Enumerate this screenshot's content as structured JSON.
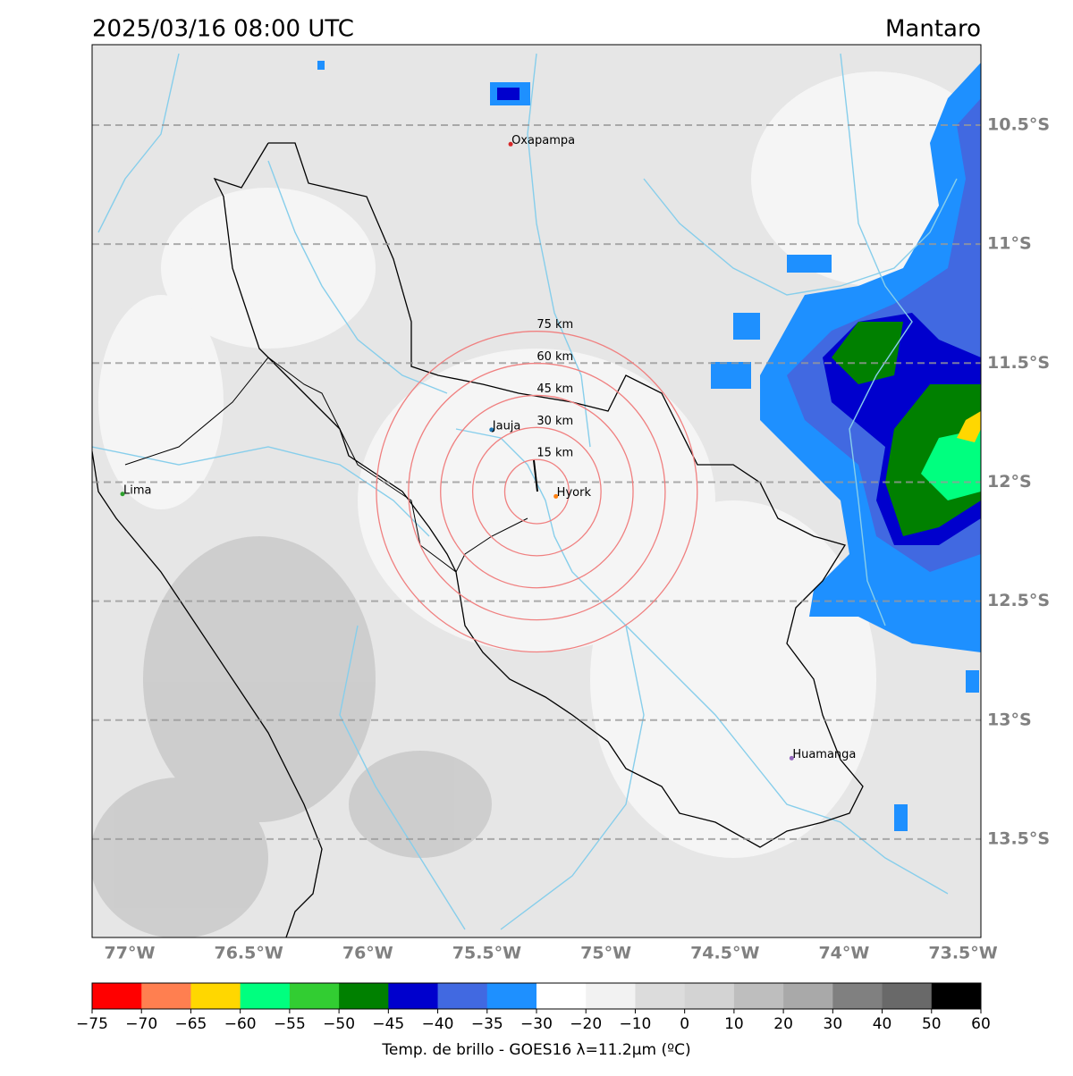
{
  "header": {
    "title": "2025/03/16 08:00 UTC",
    "region": "Mantaro"
  },
  "map": {
    "lat_ticks": [
      {
        "value": -10.5,
        "label": "10.5°S"
      },
      {
        "value": -11,
        "label": "11°S"
      },
      {
        "value": -11.5,
        "label": "11.5°S"
      },
      {
        "value": -12,
        "label": "12°S"
      },
      {
        "value": -12.5,
        "label": "12.5°S"
      },
      {
        "value": -13,
        "label": "13°S"
      },
      {
        "value": -13.5,
        "label": "13.5°S"
      }
    ],
    "lon_ticks": [
      {
        "value": -77,
        "label": "77°W"
      },
      {
        "value": -76.5,
        "label": "76.5°W"
      },
      {
        "value": -76,
        "label": "76°W"
      },
      {
        "value": -75.5,
        "label": "75.5°W"
      },
      {
        "value": -75,
        "label": "75°W"
      },
      {
        "value": -74.5,
        "label": "74.5°W"
      },
      {
        "value": -74,
        "label": "74°W"
      },
      {
        "value": -73.5,
        "label": "73.5°W"
      }
    ],
    "cities": [
      {
        "name": "Oxapampa",
        "lon": -75.4,
        "lat": -10.58,
        "color": "#d62728"
      },
      {
        "name": "Jauja",
        "lon": -75.48,
        "lat": -11.78,
        "color": "#1f77b4"
      },
      {
        "name": "Lima",
        "lon": -77.03,
        "lat": -12.05,
        "color": "#2ca02c"
      },
      {
        "name": "Hyork",
        "lon": -75.21,
        "lat": -12.06,
        "color": "#ff7f0e"
      },
      {
        "name": "Huamanga",
        "lon": -74.22,
        "lat": -13.16,
        "color": "#9467bd"
      }
    ],
    "rings": {
      "center_lon": -75.29,
      "center_lat": -12.04,
      "color": "#f08080",
      "items": [
        {
          "radius_km": 15,
          "label": "15 km"
        },
        {
          "radius_km": 30,
          "label": "30 km"
        },
        {
          "radius_km": 45,
          "label": "45 km"
        },
        {
          "radius_km": 60,
          "label": "60 km"
        },
        {
          "radius_km": 75,
          "label": "75 km"
        }
      ]
    }
  },
  "colorbar": {
    "label": "Temp. de brillo - GOES16 λ=11.2μm (ºC)",
    "ticks": [
      {
        "value": -75,
        "label": "−75"
      },
      {
        "value": -70,
        "label": "−70"
      },
      {
        "value": -65,
        "label": "−65"
      },
      {
        "value": -60,
        "label": "−60"
      },
      {
        "value": -55,
        "label": "−55"
      },
      {
        "value": -50,
        "label": "−50"
      },
      {
        "value": -45,
        "label": "−45"
      },
      {
        "value": -40,
        "label": "−40"
      },
      {
        "value": -35,
        "label": "−35"
      },
      {
        "value": -30,
        "label": "−30"
      },
      {
        "value": -20,
        "label": "−20"
      },
      {
        "value": -10,
        "label": "−10"
      },
      0,
      10,
      20,
      30,
      40,
      50,
      60
    ],
    "colors": [
      "#ff0000",
      "#ff7f50",
      "#ffd700",
      "#00ff7f",
      "#32cd32",
      "#008000",
      "#0000cd",
      "#4169e1",
      "#1e90ff",
      "#ffffff",
      "#f2f2f2",
      "#dcdcdc",
      "#d3d3d3",
      "#bebebe",
      "#a9a9a9",
      "#808080",
      "#696969",
      "#000000"
    ]
  }
}
